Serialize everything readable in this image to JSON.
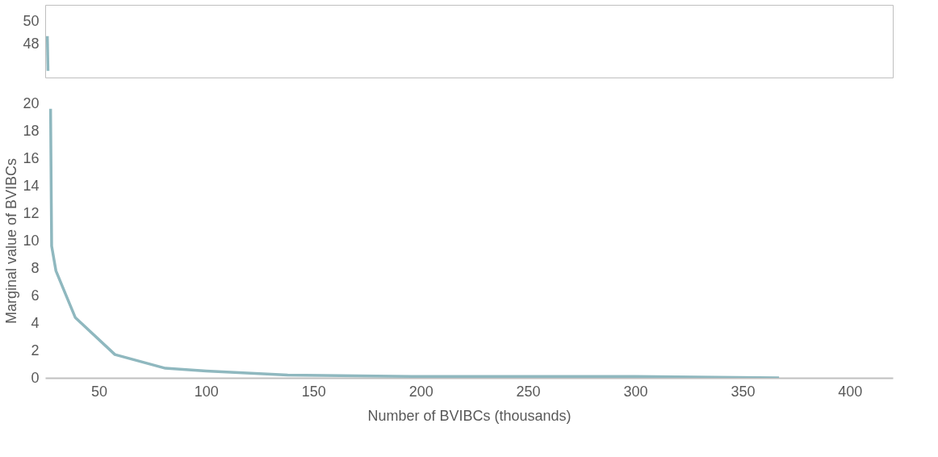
{
  "chart_data": [
    {
      "type": "line",
      "x": [
        26,
        26.3
      ],
      "series": [
        {
          "color": "#8fb8bf",
          "values": [
            48.7,
            45.6
          ]
        }
      ],
      "xlim": [
        25,
        420
      ],
      "ylim": [
        45,
        51.5
      ],
      "yticks": [
        48,
        50
      ],
      "tick_labels": "y",
      "grid": false
    },
    {
      "type": "line",
      "x": [
        27.5,
        28,
        30,
        34.5,
        39,
        57.5,
        81,
        100,
        138,
        200,
        250,
        300,
        367
      ],
      "series": [
        {
          "color": "#8fb8bf",
          "values": [
            19.6,
            9.6,
            7.8,
            6.1,
            4.4,
            1.7,
            0.7,
            0.5,
            0.2,
            0.1,
            0.1,
            0.1,
            0
          ]
        }
      ],
      "xlim": [
        25,
        420
      ],
      "ylim": [
        0,
        20
      ],
      "xticks": [
        50,
        100,
        150,
        200,
        250,
        300,
        350,
        400
      ],
      "yticks": [
        0,
        2,
        4,
        6,
        8,
        10,
        12,
        14,
        16,
        18,
        20
      ],
      "xlabel": "Number of BVIBCs (thousands)",
      "ylabel": "Marginal value of BVIBCs",
      "grid": false
    }
  ]
}
